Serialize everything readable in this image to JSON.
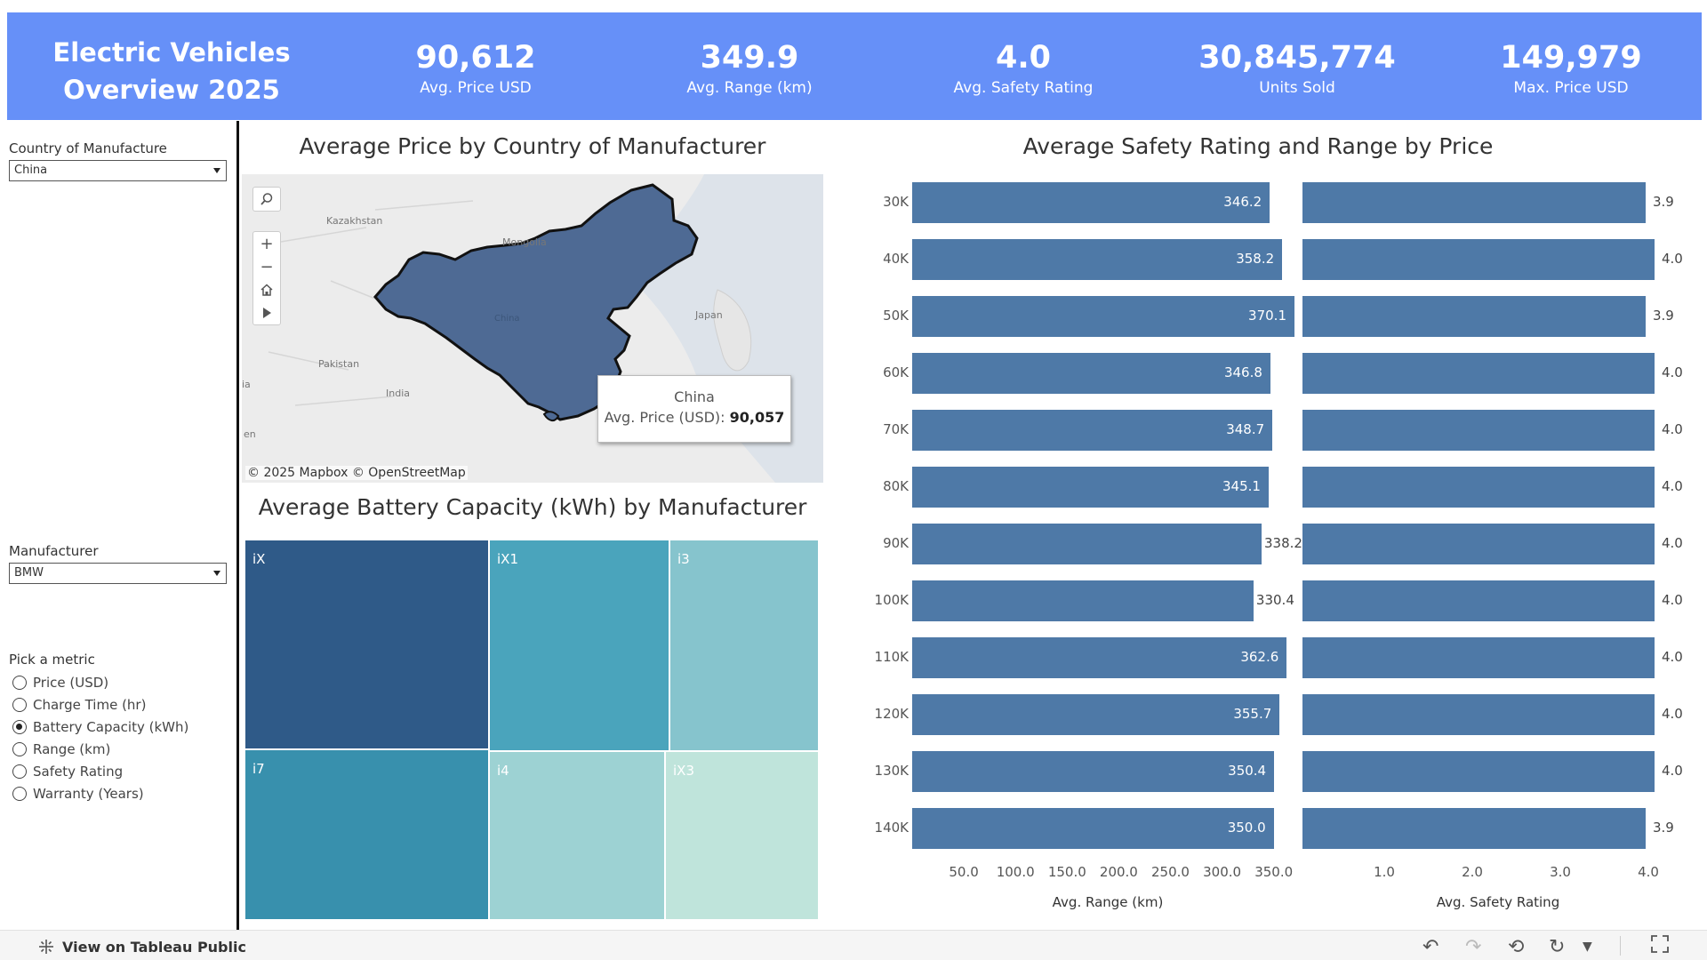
{
  "header": {
    "title_line1": "Electric Vehicles",
    "title_line2": "Overview 2025",
    "kpis": [
      {
        "value": "90,612",
        "label": "Avg. Price USD"
      },
      {
        "value": "349.9",
        "label": "Avg. Range (km)"
      },
      {
        "value": "4.0",
        "label": "Avg. Safety Rating"
      },
      {
        "value": "30,845,774",
        "label": "Units Sold"
      },
      {
        "value": "149,979",
        "label": "Max. Price USD"
      }
    ]
  },
  "filters": {
    "country_label": "Country of Manufacture",
    "country_value": "China",
    "manufacturer_label": "Manufacturer",
    "manufacturer_value": "BMW",
    "metric_label": "Pick a metric",
    "metrics": [
      {
        "label": "Price (USD)",
        "selected": false
      },
      {
        "label": "Charge Time (hr)",
        "selected": false
      },
      {
        "label": "Battery Capacity (kWh)",
        "selected": true
      },
      {
        "label": "Range (km)",
        "selected": false
      },
      {
        "label": "Safety Rating",
        "selected": false
      },
      {
        "label": "Warranty (Years)",
        "selected": false
      }
    ]
  },
  "map": {
    "title": "Average  Price by Country of Manufacturer",
    "place_labels": [
      "Kazakhstan",
      "Mongolia",
      "China",
      "Japan",
      "Pakistan",
      "India",
      "en",
      "ia"
    ],
    "tooltip_country": "China",
    "tooltip_metric_label": "Avg. Price (USD):",
    "tooltip_metric_value": "90,057",
    "attribution": "© 2025 Mapbox  © OpenStreetMap",
    "highlight_color": "#4e6a94"
  },
  "treemap": {
    "title": "Average Battery Capacity (kWh) by Manufacturer",
    "cells": [
      {
        "label": "iX",
        "color": "#2f5a88"
      },
      {
        "label": "iX1",
        "color": "#4aa4bc"
      },
      {
        "label": "i3",
        "color": "#86c4cd"
      },
      {
        "label": "i7",
        "color": "#3890ad"
      },
      {
        "label": "i4",
        "color": "#9dd2d3"
      },
      {
        "label": "iX3",
        "color": "#bfe4db"
      }
    ]
  },
  "chart_data": {
    "type": "bar",
    "title": "Average Safety Rating and Range by Price",
    "orientation": "horizontal",
    "categories": [
      "30K",
      "40K",
      "50K",
      "60K",
      "70K",
      "80K",
      "90K",
      "100K",
      "110K",
      "120K",
      "130K",
      "140K"
    ],
    "series": [
      {
        "name": "Avg. Range (km)",
        "values": [
          346.2,
          358.2,
          370.1,
          346.8,
          348.7,
          345.1,
          338.2,
          330.4,
          362.6,
          355.7,
          350.4,
          350.0
        ],
        "labels": [
          "346.2",
          "358.2",
          "370.1",
          "346.8",
          "348.7",
          "345.1",
          "338.2",
          "330.4",
          "362.6",
          "355.7",
          "350.4",
          "350.0"
        ]
      },
      {
        "name": "Avg. Safety Rating",
        "values": [
          3.9,
          4.0,
          3.9,
          4.0,
          4.0,
          4.0,
          4.0,
          4.0,
          4.0,
          4.0,
          4.0,
          3.9
        ],
        "labels": [
          "3.9",
          "4.0",
          "3.9",
          "4.0",
          "4.0",
          "4.0",
          "4.0",
          "4.0",
          "4.0",
          "4.0",
          "4.0",
          "3.9"
        ]
      }
    ],
    "x_ticks_range": [
      "50.0",
      "100.0",
      "150.0",
      "200.0",
      "250.0",
      "300.0",
      "350.0"
    ],
    "x_ticks_safety": [
      "1.0",
      "2.0",
      "3.0",
      "4.0"
    ],
    "xlabel_range": "Avg. Range (km)",
    "xlabel_safety": "Avg. Safety Rating",
    "bar_color": "#4e79a7"
  },
  "footer": {
    "tableau_link": "View on Tableau Public"
  }
}
